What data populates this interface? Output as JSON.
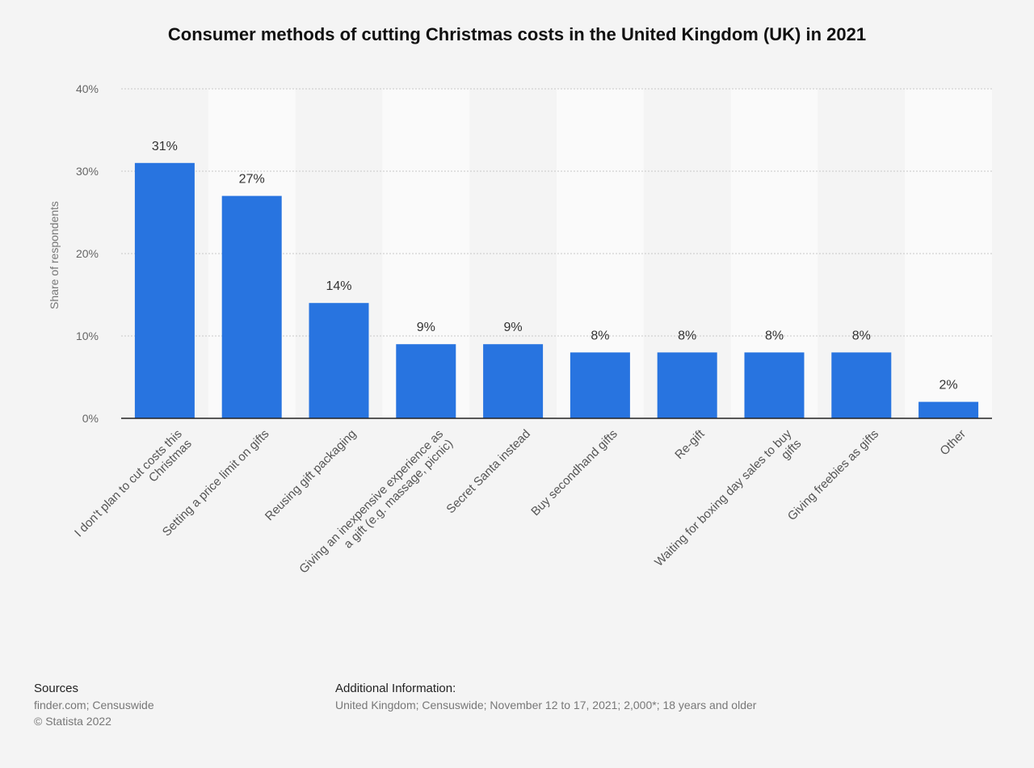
{
  "chart_data": {
    "type": "bar",
    "title": "Consumer methods of cutting Christmas costs in the United Kingdom (UK) in 2021",
    "ylabel": "Share of respondents",
    "ylim": [
      0,
      40
    ],
    "yticks": [
      "0%",
      "10%",
      "20%",
      "30%",
      "40%"
    ],
    "grid": true,
    "categories": [
      "I don't plan to cut costs this Christmas",
      "Setting a price limit on gifts",
      "Reusing gift packaging",
      "Giving an inexpensive experience as a gift (e.g. massage, picnic)",
      "Secret Santa instead",
      "Buy secondhand gifts",
      "Re-gift",
      "Waiting for boxing day sales to buy gifts",
      "Giving freebies as gifts",
      "Other"
    ],
    "category_lines": [
      [
        "I don't plan to cut costs this",
        "Christmas"
      ],
      [
        "Setting a price limit on gifts"
      ],
      [
        "Reusing gift packaging"
      ],
      [
        "Giving an inexpensive experience as",
        "a gift (e.g. massage, picnic)"
      ],
      [
        "Secret Santa instead"
      ],
      [
        "Buy secondhand gifts"
      ],
      [
        "Re-gift"
      ],
      [
        "Waiting for boxing day sales to buy",
        "gifts"
      ],
      [
        "Giving freebies as gifts"
      ],
      [
        "Other"
      ]
    ],
    "values": [
      31,
      27,
      14,
      9,
      9,
      8,
      8,
      8,
      8,
      2
    ],
    "value_labels": [
      "31%",
      "27%",
      "14%",
      "9%",
      "9%",
      "8%",
      "8%",
      "8%",
      "8%",
      "2%"
    ],
    "bar_color": "#2874e0"
  },
  "footer": {
    "sources_heading": "Sources",
    "sources_line1": "finder.com; Censuswide",
    "sources_line2": "© Statista 2022",
    "info_heading": "Additional Information:",
    "info_line": "United Kingdom; Censuswide; November 12 to 17, 2021; 2,000*; 18 years and older"
  }
}
